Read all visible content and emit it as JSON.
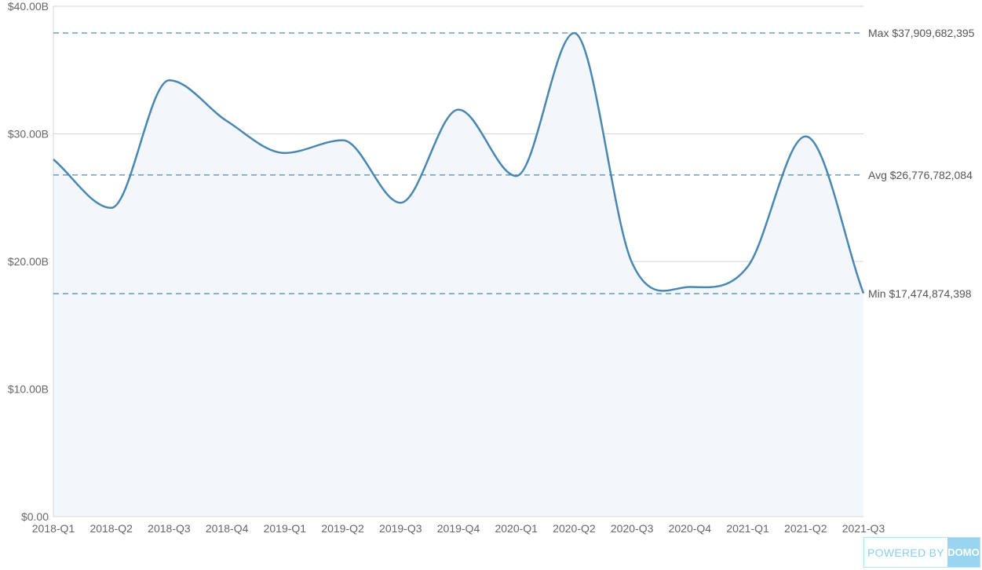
{
  "chart_data": {
    "type": "area",
    "title": "",
    "xlabel": "",
    "ylabel": "",
    "categories": [
      "2018-Q1",
      "2018-Q2",
      "2018-Q3",
      "2018-Q4",
      "2019-Q1",
      "2019-Q2",
      "2019-Q3",
      "2019-Q4",
      "2020-Q1",
      "2020-Q2",
      "2020-Q3",
      "2020-Q4",
      "2021-Q1",
      "2021-Q2",
      "2021-Q3"
    ],
    "series": [
      {
        "values": [
          28.0,
          24.2,
          34.2,
          31.0,
          28.5,
          29.5,
          24.6,
          31.9,
          26.7,
          37.9,
          19.9,
          18.0,
          19.6,
          29.8,
          17.5
        ]
      }
    ],
    "ylim": [
      0,
      40
    ],
    "y_ticks": [
      {
        "value": 0,
        "label": "$0.00"
      },
      {
        "value": 10,
        "label": "$10.00B"
      },
      {
        "value": 20,
        "label": "$20.00B"
      },
      {
        "value": 30,
        "label": "$30.00B"
      },
      {
        "value": 40,
        "label": "$40.00B"
      }
    ],
    "reference_lines": [
      {
        "name": "max",
        "value": 37.909682395,
        "label": "Max $37,909,682,395"
      },
      {
        "name": "avg",
        "value": 26.776782084,
        "label": "Avg $26,776,782,084"
      },
      {
        "name": "min",
        "value": 17.474874398,
        "label": "Min $17,474,874,398"
      }
    ],
    "grid": true,
    "legend": "none",
    "colors": {
      "line": "#4a87b0",
      "area": "#f3f7fb",
      "reference": "#4a8bb5",
      "grid": "#d4d4d4"
    }
  },
  "badge": {
    "text": "POWERED BY",
    "logo": "DOMO"
  }
}
